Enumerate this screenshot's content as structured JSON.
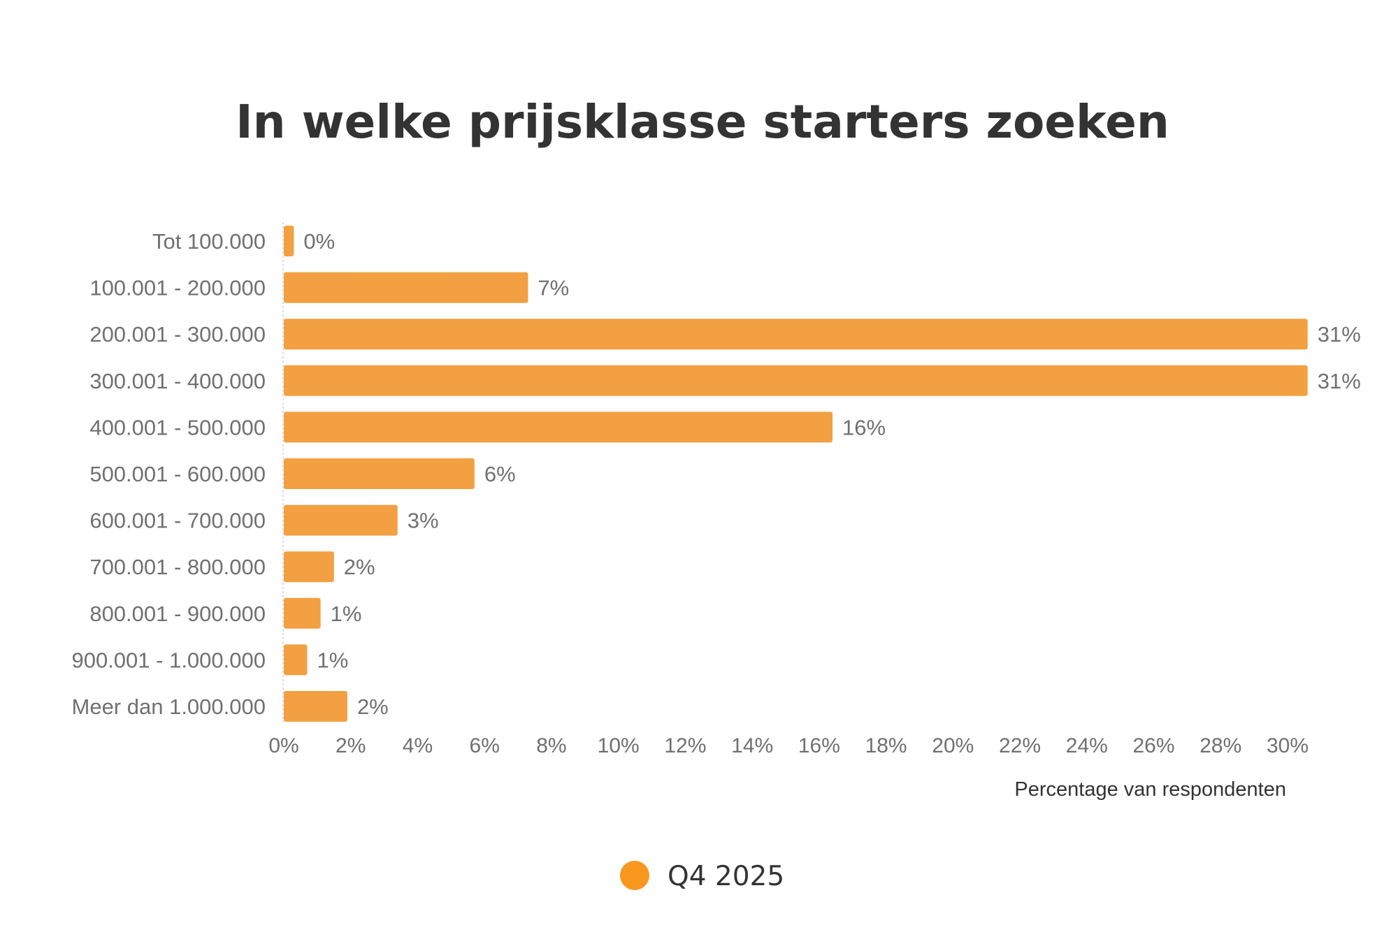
{
  "chart_data": {
    "type": "bar",
    "orientation": "horizontal",
    "title": "In welke prijsklasse starters zoeken",
    "xlabel": "Percentage van respondenten",
    "ylabel": "",
    "categories": [
      "Tot 100.000",
      "100.001 - 200.000",
      "200.001 - 300.000",
      "300.001 - 400.000",
      "400.001 - 500.000",
      "500.001 - 600.000",
      "600.001 - 700.000",
      "700.001 - 800.000",
      "800.001 - 900.000",
      "900.001 - 1.000.000",
      "Meer dan 1.000.000"
    ],
    "series": [
      {
        "name": "Q4 2025",
        "color": "#f2a041",
        "values": [
          0.3,
          7.3,
          30.6,
          30.6,
          16.4,
          5.7,
          3.4,
          1.5,
          1.1,
          0.7,
          1.9
        ],
        "labels": [
          "0%",
          "7%",
          "31%",
          "31%",
          "16%",
          "6%",
          "3%",
          "2%",
          "1%",
          "1%",
          "2%"
        ]
      }
    ],
    "xlim": [
      0,
      30
    ],
    "xticks": [
      0,
      2,
      4,
      6,
      8,
      10,
      12,
      14,
      16,
      18,
      20,
      22,
      24,
      26,
      28,
      30
    ],
    "xtick_labels": [
      "0%",
      "2%",
      "4%",
      "6%",
      "8%",
      "10%",
      "12%",
      "14%",
      "16%",
      "18%",
      "20%",
      "22%",
      "24%",
      "26%",
      "28%",
      "30%"
    ],
    "grid": false,
    "legend": {
      "position": "bottom-center",
      "entries": [
        {
          "label": "Q4 2025",
          "color": "#f7971e"
        }
      ]
    }
  }
}
